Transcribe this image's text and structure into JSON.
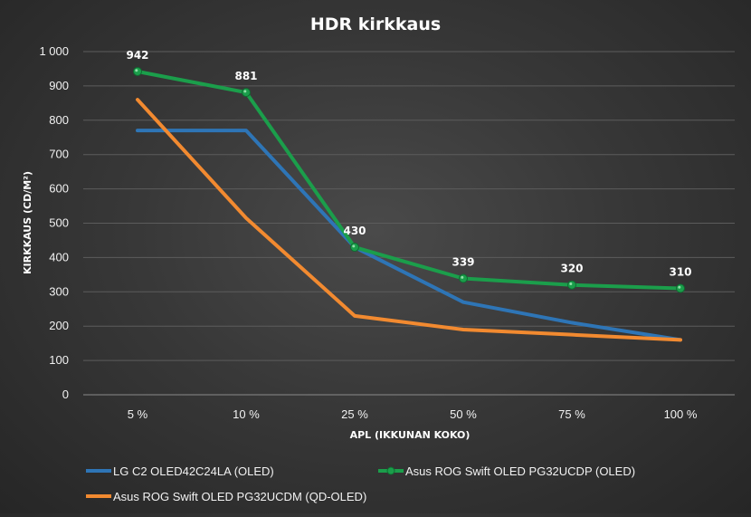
{
  "chart_data": {
    "type": "line",
    "title": "HDR kirkkaus",
    "xlabel": "APL (IKKUNAN KOKO)",
    "ylabel": "KIRKKAUS (CD/M²)",
    "categories": [
      "5 %",
      "10 %",
      "25 %",
      "50 %",
      "75 %",
      "100 %"
    ],
    "ylim": [
      0,
      1000
    ],
    "yticks": [
      0,
      100,
      200,
      300,
      400,
      500,
      600,
      700,
      800,
      900,
      1000
    ],
    "ytick_labels": [
      "0",
      "100",
      "200",
      "300",
      "400",
      "500",
      "600",
      "700",
      "800",
      "900",
      "1 000"
    ],
    "grid": true,
    "legend_position": "bottom",
    "series": [
      {
        "name": "LG C2 OLED42C24LA (OLED)",
        "color": "#2e75b6",
        "values": [
          770,
          770,
          430,
          270,
          210,
          160
        ],
        "markers": false,
        "data_labels": false
      },
      {
        "name": "Asus ROG Swift OLED PG32UCDP (OLED)",
        "color": "#1b9e4b",
        "values": [
          942,
          881,
          430,
          339,
          320,
          310
        ],
        "markers": true,
        "data_labels": true
      },
      {
        "name": "Asus ROG Swift OLED PG32UCDM (QD-OLED)",
        "color": "#f28a30",
        "values": [
          860,
          515,
          230,
          190,
          175,
          160
        ],
        "markers": false,
        "data_labels": false
      }
    ]
  }
}
